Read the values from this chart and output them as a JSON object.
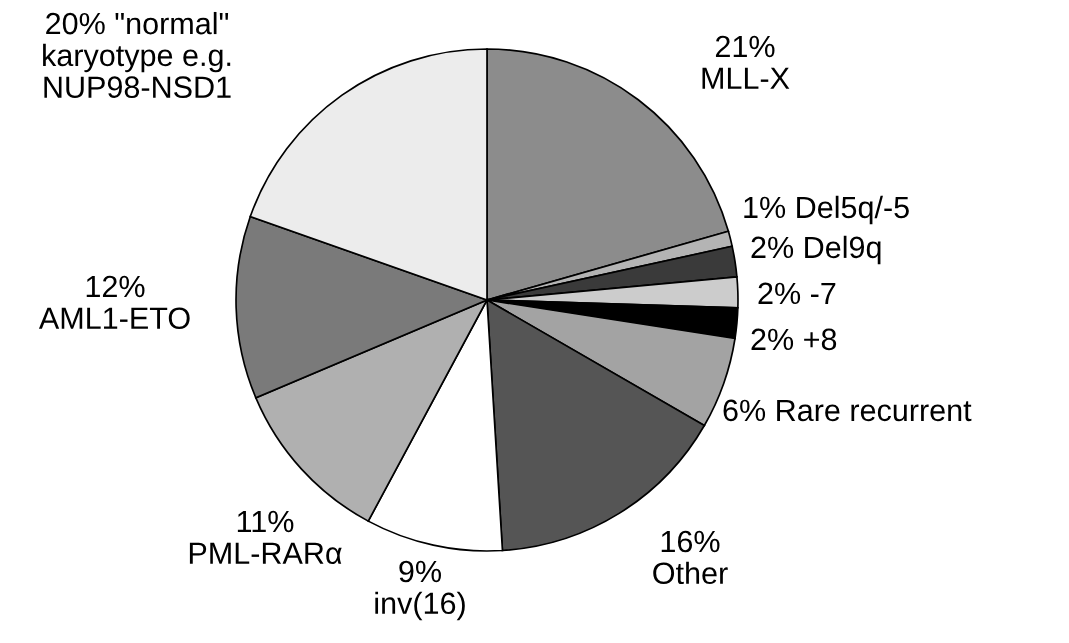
{
  "chart_data": {
    "type": "pie",
    "categories": [
      "MLL-X",
      "Del5q/-5",
      "Del9q",
      "-7",
      "+8",
      "Rare recurrent",
      "Other",
      "inv(16)",
      "PML-RARα",
      "AML1-ETO",
      "\"normal\"\nkaryotype e.g.\nNUP98-NSD1"
    ],
    "values": [
      21,
      1,
      2,
      2,
      2,
      6,
      16,
      9,
      11,
      12,
      20
    ],
    "value_labels": [
      "21%",
      "1%",
      "2%",
      "2%",
      "2%",
      "6%",
      "16%",
      "9%",
      "11%",
      "12%",
      "20%"
    ],
    "colors": [
      "#8c8c8c",
      "#b4b4b4",
      "#3a3a3a",
      "#cccccc",
      "#000000",
      "#a3a3a3",
      "#555555",
      "#ffffff",
      "#b0b0b0",
      "#7a7a7a",
      "#ececec"
    ]
  }
}
